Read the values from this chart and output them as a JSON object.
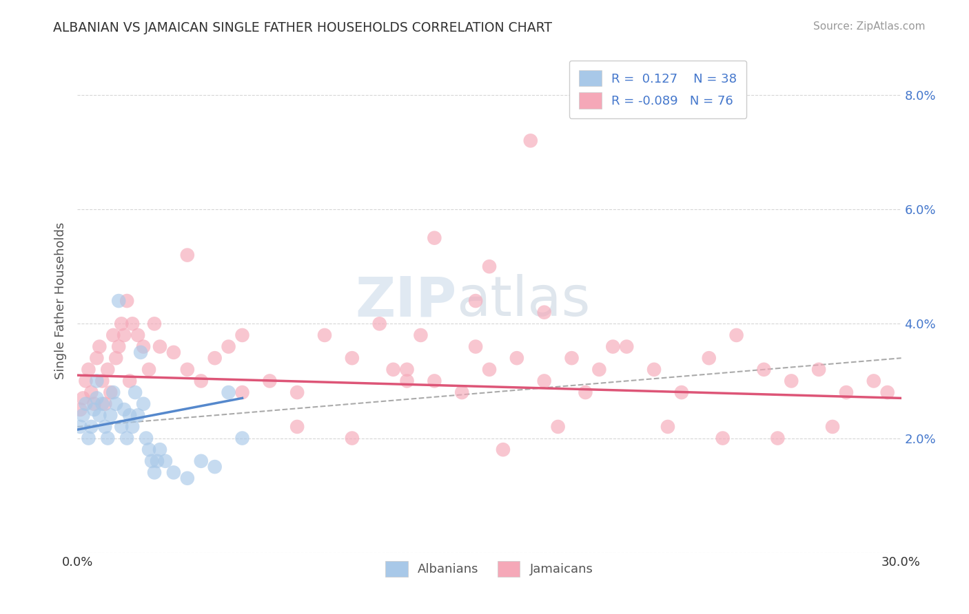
{
  "title": "ALBANIAN VS JAMAICAN SINGLE FATHER HOUSEHOLDS CORRELATION CHART",
  "source": "Source: ZipAtlas.com",
  "ylabel": "Single Father Households",
  "xlim": [
    0.0,
    0.3
  ],
  "ylim": [
    0.0,
    0.088
  ],
  "yticks": [
    0.0,
    0.02,
    0.04,
    0.06,
    0.08
  ],
  "ytick_labels_right": [
    "",
    "2.0%",
    "4.0%",
    "6.0%",
    "8.0%"
  ],
  "xticks": [
    0.0,
    0.3
  ],
  "xtick_labels": [
    "0.0%",
    "30.0%"
  ],
  "albanian_color": "#a8c8e8",
  "jamaican_color": "#f5a8b8",
  "albanian_line_color": "#5588cc",
  "jamaican_line_color": "#dd5577",
  "dash_line_color": "#aaaaaa",
  "background_color": "#ffffff",
  "grid_color": "#cccccc",
  "legend_r1": "R =  0.127",
  "legend_n1": "N = 38",
  "legend_r2": "R = -0.089",
  "legend_n2": "N = 76",
  "legend_text_color": "#4477cc",
  "watermark_zip": "ZIP",
  "watermark_atlas": "atlas",
  "albanian_x": [
    0.001,
    0.002,
    0.003,
    0.004,
    0.005,
    0.006,
    0.007,
    0.007,
    0.008,
    0.009,
    0.01,
    0.011,
    0.012,
    0.013,
    0.014,
    0.015,
    0.016,
    0.017,
    0.018,
    0.019,
    0.02,
    0.021,
    0.022,
    0.023,
    0.024,
    0.025,
    0.026,
    0.027,
    0.028,
    0.029,
    0.03,
    0.032,
    0.035,
    0.04,
    0.045,
    0.05,
    0.055,
    0.06
  ],
  "albanian_y": [
    0.022,
    0.024,
    0.026,
    0.02,
    0.022,
    0.025,
    0.027,
    0.03,
    0.024,
    0.026,
    0.022,
    0.02,
    0.024,
    0.028,
    0.026,
    0.044,
    0.022,
    0.025,
    0.02,
    0.024,
    0.022,
    0.028,
    0.024,
    0.035,
    0.026,
    0.02,
    0.018,
    0.016,
    0.014,
    0.016,
    0.018,
    0.016,
    0.014,
    0.013,
    0.016,
    0.015,
    0.028,
    0.02
  ],
  "jamaican_x": [
    0.001,
    0.002,
    0.003,
    0.004,
    0.005,
    0.006,
    0.007,
    0.008,
    0.009,
    0.01,
    0.011,
    0.012,
    0.013,
    0.014,
    0.015,
    0.016,
    0.017,
    0.018,
    0.019,
    0.02,
    0.022,
    0.024,
    0.026,
    0.028,
    0.03,
    0.035,
    0.04,
    0.04,
    0.045,
    0.05,
    0.055,
    0.06,
    0.07,
    0.08,
    0.09,
    0.1,
    0.11,
    0.115,
    0.12,
    0.13,
    0.14,
    0.145,
    0.15,
    0.16,
    0.165,
    0.17,
    0.18,
    0.185,
    0.19,
    0.2,
    0.21,
    0.22,
    0.23,
    0.24,
    0.25,
    0.26,
    0.27,
    0.28,
    0.29,
    0.295,
    0.13,
    0.15,
    0.17,
    0.195,
    0.215,
    0.235,
    0.255,
    0.275,
    0.125,
    0.145,
    0.06,
    0.08,
    0.1,
    0.12,
    0.155,
    0.175
  ],
  "jamaican_y": [
    0.025,
    0.027,
    0.03,
    0.032,
    0.028,
    0.026,
    0.034,
    0.036,
    0.03,
    0.026,
    0.032,
    0.028,
    0.038,
    0.034,
    0.036,
    0.04,
    0.038,
    0.044,
    0.03,
    0.04,
    0.038,
    0.036,
    0.032,
    0.04,
    0.036,
    0.035,
    0.032,
    0.052,
    0.03,
    0.034,
    0.036,
    0.028,
    0.03,
    0.028,
    0.038,
    0.034,
    0.04,
    0.032,
    0.03,
    0.03,
    0.028,
    0.036,
    0.032,
    0.034,
    0.072,
    0.03,
    0.034,
    0.028,
    0.032,
    0.036,
    0.032,
    0.028,
    0.034,
    0.038,
    0.032,
    0.03,
    0.032,
    0.028,
    0.03,
    0.028,
    0.055,
    0.05,
    0.042,
    0.036,
    0.022,
    0.02,
    0.02,
    0.022,
    0.038,
    0.044,
    0.038,
    0.022,
    0.02,
    0.032,
    0.018,
    0.022
  ],
  "alb_trend_x": [
    0.0,
    0.06
  ],
  "alb_trend_y": [
    0.0215,
    0.027
  ],
  "jam_trend_x": [
    0.0,
    0.3
  ],
  "jam_trend_y": [
    0.031,
    0.027
  ],
  "dash_trend_x": [
    0.0,
    0.3
  ],
  "dash_trend_y": [
    0.022,
    0.034
  ]
}
